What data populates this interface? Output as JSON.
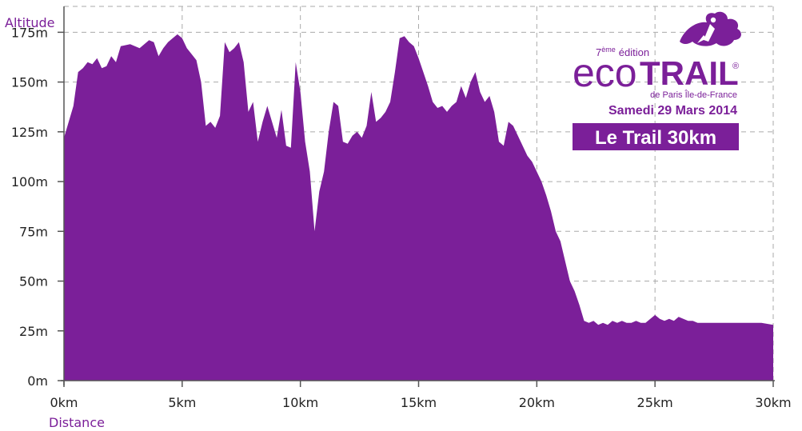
{
  "chart_data": {
    "type": "area",
    "title": "",
    "xlabel": "Distance",
    "ylabel": "Altitude",
    "x_unit": "km",
    "y_unit": "m",
    "xlim": [
      0,
      30
    ],
    "ylim": [
      0,
      180
    ],
    "x_ticks": [
      0,
      5,
      10,
      15,
      20,
      25,
      30
    ],
    "x_tick_labels": [
      "0km",
      "5km",
      "10km",
      "15km",
      "20km",
      "25km",
      "30km"
    ],
    "y_ticks": [
      0,
      25,
      50,
      75,
      100,
      125,
      150,
      175
    ],
    "y_tick_labels": [
      "0m",
      "25m",
      "50m",
      "75m",
      "100m",
      "125m",
      "150m",
      "175m"
    ],
    "grid": "dashed",
    "series": [
      {
        "fill_color": "#7b1f99",
        "points": [
          [
            0,
            122
          ],
          [
            0.2,
            130
          ],
          [
            0.4,
            138
          ],
          [
            0.6,
            155
          ],
          [
            0.8,
            157
          ],
          [
            1.0,
            160
          ],
          [
            1.2,
            159
          ],
          [
            1.4,
            162
          ],
          [
            1.6,
            157
          ],
          [
            1.8,
            158
          ],
          [
            2.0,
            163
          ],
          [
            2.2,
            160
          ],
          [
            2.4,
            168
          ],
          [
            2.8,
            169
          ],
          [
            3.0,
            168
          ],
          [
            3.2,
            167
          ],
          [
            3.4,
            169
          ],
          [
            3.6,
            171
          ],
          [
            3.8,
            170
          ],
          [
            4.0,
            163
          ],
          [
            4.2,
            167
          ],
          [
            4.4,
            170
          ],
          [
            4.6,
            172
          ],
          [
            4.8,
            174
          ],
          [
            5.0,
            172
          ],
          [
            5.2,
            167
          ],
          [
            5.4,
            164
          ],
          [
            5.6,
            161
          ],
          [
            5.8,
            150
          ],
          [
            6.0,
            128
          ],
          [
            6.2,
            130
          ],
          [
            6.4,
            127
          ],
          [
            6.6,
            133
          ],
          [
            6.8,
            170
          ],
          [
            7.0,
            165
          ],
          [
            7.2,
            167
          ],
          [
            7.4,
            170
          ],
          [
            7.6,
            160
          ],
          [
            7.8,
            135
          ],
          [
            8.0,
            140
          ],
          [
            8.2,
            120
          ],
          [
            8.4,
            130
          ],
          [
            8.6,
            138
          ],
          [
            8.8,
            130
          ],
          [
            9.0,
            122
          ],
          [
            9.2,
            136
          ],
          [
            9.4,
            118
          ],
          [
            9.6,
            117
          ],
          [
            9.8,
            160
          ],
          [
            10.0,
            145
          ],
          [
            10.2,
            120
          ],
          [
            10.4,
            105
          ],
          [
            10.6,
            75
          ],
          [
            10.8,
            95
          ],
          [
            11.0,
            105
          ],
          [
            11.2,
            125
          ],
          [
            11.4,
            140
          ],
          [
            11.6,
            138
          ],
          [
            11.8,
            120
          ],
          [
            12.0,
            119
          ],
          [
            12.2,
            123
          ],
          [
            12.4,
            125
          ],
          [
            12.6,
            122
          ],
          [
            12.8,
            128
          ],
          [
            13.0,
            145
          ],
          [
            13.2,
            130
          ],
          [
            13.4,
            132
          ],
          [
            13.6,
            135
          ],
          [
            13.8,
            140
          ],
          [
            14.0,
            155
          ],
          [
            14.2,
            172
          ],
          [
            14.4,
            173
          ],
          [
            14.6,
            170
          ],
          [
            14.8,
            168
          ],
          [
            15.0,
            162
          ],
          [
            15.2,
            155
          ],
          [
            15.4,
            148
          ],
          [
            15.6,
            140
          ],
          [
            15.8,
            137
          ],
          [
            16.0,
            138
          ],
          [
            16.2,
            135
          ],
          [
            16.4,
            138
          ],
          [
            16.6,
            140
          ],
          [
            16.8,
            148
          ],
          [
            17.0,
            142
          ],
          [
            17.2,
            150
          ],
          [
            17.4,
            155
          ],
          [
            17.6,
            145
          ],
          [
            17.8,
            140
          ],
          [
            18.0,
            143
          ],
          [
            18.2,
            135
          ],
          [
            18.4,
            120
          ],
          [
            18.6,
            118
          ],
          [
            18.8,
            130
          ],
          [
            19.0,
            128
          ],
          [
            19.2,
            123
          ],
          [
            19.4,
            118
          ],
          [
            19.6,
            113
          ],
          [
            19.8,
            110
          ],
          [
            20.0,
            105
          ],
          [
            20.2,
            100
          ],
          [
            20.4,
            93
          ],
          [
            20.6,
            85
          ],
          [
            20.8,
            75
          ],
          [
            21.0,
            70
          ],
          [
            21.2,
            60
          ],
          [
            21.4,
            50
          ],
          [
            21.6,
            45
          ],
          [
            21.8,
            38
          ],
          [
            22.0,
            30
          ],
          [
            22.2,
            29
          ],
          [
            22.4,
            30
          ],
          [
            22.6,
            28
          ],
          [
            22.8,
            29
          ],
          [
            23.0,
            28
          ],
          [
            23.2,
            30
          ],
          [
            23.4,
            29
          ],
          [
            23.6,
            30
          ],
          [
            23.8,
            29
          ],
          [
            24.0,
            29
          ],
          [
            24.2,
            30
          ],
          [
            24.4,
            29
          ],
          [
            24.6,
            29
          ],
          [
            24.8,
            31
          ],
          [
            25.0,
            33
          ],
          [
            25.2,
            31
          ],
          [
            25.4,
            30
          ],
          [
            25.6,
            31
          ],
          [
            25.8,
            30
          ],
          [
            26.0,
            32
          ],
          [
            26.2,
            31
          ],
          [
            26.4,
            30
          ],
          [
            26.6,
            30
          ],
          [
            26.8,
            29
          ],
          [
            27.0,
            29
          ],
          [
            28.0,
            29
          ],
          [
            29.0,
            29
          ],
          [
            29.5,
            29
          ],
          [
            30.0,
            28
          ]
        ]
      }
    ]
  },
  "logo": {
    "edition_sup": "ème",
    "edition_number": "7",
    "edition_word": "édition",
    "brand_eco": "eco",
    "brand_trail": "TRAIL",
    "registered": "®",
    "subtitle": "de Paris Île-de-France",
    "date": "Samedi 29 Mars 2014",
    "race_name": "Le Trail 30km"
  },
  "colors": {
    "accent": "#7b1f99",
    "grid": "#aaaaaa",
    "axis": "#555555",
    "text": "#222222"
  }
}
